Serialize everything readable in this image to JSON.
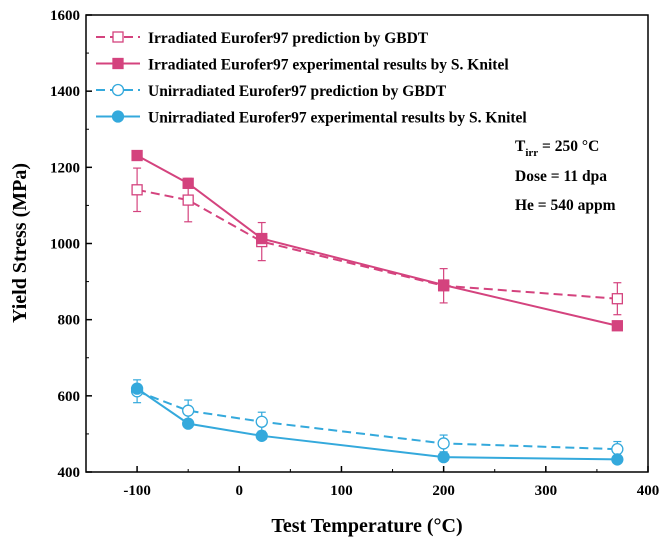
{
  "chart_data": {
    "type": "line",
    "xlabel": "Test Temperature (°C)",
    "ylabel": "Yield Stress (MPa)",
    "xlim": [
      -150,
      400
    ],
    "ylim": [
      400,
      1600
    ],
    "xticks": [
      -100,
      0,
      100,
      200,
      300,
      400
    ],
    "yticks": [
      400,
      600,
      800,
      1000,
      1200,
      1400,
      1600
    ],
    "xtick_labels": [
      "-100",
      "0",
      "100",
      "200",
      "300",
      "400"
    ],
    "ytick_labels": [
      "400",
      "600",
      "800",
      "1000",
      "1200",
      "1400",
      "1600"
    ],
    "grid": false,
    "legend_position": "top-left",
    "colors": {
      "irradiated": "#d4437e",
      "unirradiated": "#34a9dc"
    },
    "series": [
      {
        "name": "Irradiated Eurofer97 prediction by GBDT",
        "color": "#d4437e",
        "line": "dashed",
        "marker": "square-open",
        "x": [
          -100,
          -50,
          22,
          200,
          370
        ],
        "y": [
          1141,
          1114,
          1005,
          889,
          855
        ],
        "yerr": [
          57,
          57,
          50,
          45,
          42
        ]
      },
      {
        "name": "Irradiated Eurofer97 experimental results by S. Knitel",
        "color": "#d4437e",
        "line": "solid",
        "marker": "square-filled",
        "x": [
          -100,
          -50,
          22,
          200,
          370
        ],
        "y": [
          1231,
          1158,
          1013,
          891,
          784
        ]
      },
      {
        "name": "Unirradiated Eurofer97 prediction by GBDT",
        "color": "#34a9dc",
        "line": "dashed",
        "marker": "circle-open",
        "x": [
          -100,
          -50,
          22,
          200,
          370
        ],
        "y": [
          612,
          561,
          532,
          475,
          460
        ],
        "yerr": [
          30,
          28,
          25,
          22,
          20
        ]
      },
      {
        "name": "Unirradiated Eurofer97 experimental results by S. Knitel",
        "color": "#34a9dc",
        "line": "solid",
        "marker": "circle-filled",
        "x": [
          -100,
          -50,
          22,
          200,
          370
        ],
        "y": [
          619,
          527,
          495,
          439,
          433
        ]
      }
    ],
    "annotations": {
      "tirr_prefix": "T",
      "tirr_subscript": "irr",
      "tirr_value": " = 250 °C",
      "dose": "Dose = 11 dpa",
      "he": "He = 540 appm"
    }
  }
}
